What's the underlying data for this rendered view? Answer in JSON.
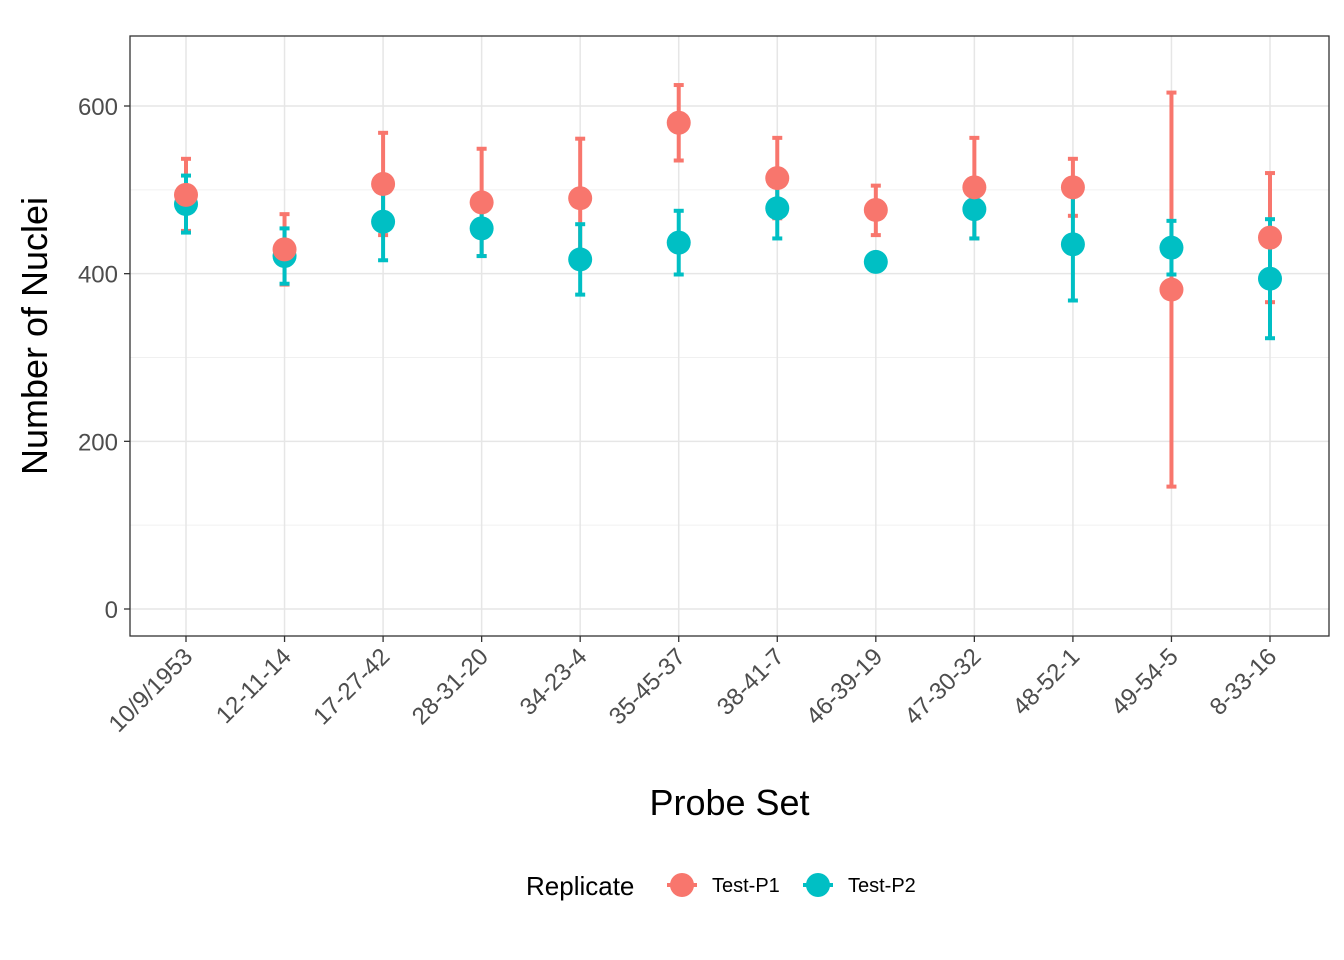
{
  "chart_data": {
    "type": "scatter",
    "xlabel": "Probe Set",
    "ylabel": "Number of Nuclei",
    "categories": [
      "10/9/1953",
      "12-11-14",
      "17-27-42",
      "28-31-20",
      "34-23-4",
      "35-45-37",
      "38-41-7",
      "46-39-19",
      "47-30-32",
      "48-52-1",
      "49-54-5",
      "8-33-16"
    ],
    "ylim": [
      -32,
      682
    ],
    "yticks": [
      0,
      200,
      400,
      600
    ],
    "grid": true,
    "error_bars": true,
    "legend": {
      "title": "Replicate",
      "position": "bottom"
    },
    "series": [
      {
        "name": "Test-P1",
        "color": "#F8766D",
        "values": [
          494,
          429,
          507,
          485,
          490,
          580,
          514,
          476,
          503,
          503,
          381,
          443
        ],
        "lower": [
          451,
          387,
          446,
          421,
          418,
          535,
          466,
          446,
          442,
          469,
          146,
          366
        ],
        "upper": [
          537,
          471,
          568,
          549,
          561,
          625,
          562,
          505,
          562,
          537,
          616,
          520
        ]
      },
      {
        "name": "Test-P2",
        "color": "#00BFC4",
        "values": [
          483,
          421,
          462,
          454,
          417,
          437,
          478,
          414,
          477,
          435,
          431,
          394
        ],
        "lower": [
          449,
          388,
          416,
          421,
          375,
          399,
          442,
          null,
          442,
          368,
          399,
          323
        ],
        "upper": [
          517,
          454,
          508,
          487,
          459,
          475,
          514,
          null,
          512,
          502,
          463,
          465
        ]
      }
    ]
  }
}
